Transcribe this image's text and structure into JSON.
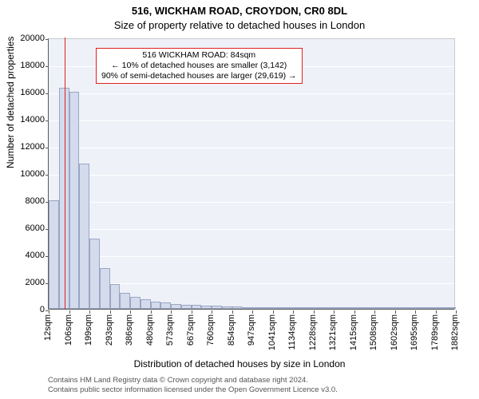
{
  "title_line1": "516, WICKHAM ROAD, CROYDON, CR0 8DL",
  "title_line2": "Size of property relative to detached houses in London",
  "ylabel": "Number of detached properties",
  "xlabel": "Distribution of detached houses by size in London",
  "footer_line1": "Contains HM Land Registry data © Crown copyright and database right 2024.",
  "footer_line2": "Contains public sector information licensed under the Open Government Licence v3.0.",
  "chart": {
    "type": "histogram",
    "background_color": "#eef1f8",
    "grid_color": "#ffffff",
    "axis_color": "#5a5a5a",
    "bar_fill": "#d3dbec",
    "bar_border": "#9aa6c4",
    "marker_color": "#e02020",
    "ylim": [
      0,
      20000
    ],
    "ytick_step": 2000,
    "ytick_labels": [
      "0",
      "2000",
      "4000",
      "6000",
      "8000",
      "10000",
      "12000",
      "14000",
      "16000",
      "18000",
      "20000"
    ],
    "x_bin_start": 12,
    "x_bin_width": 46.75,
    "x_bin_count": 40,
    "x_tick_every": 2,
    "x_tick_labels": [
      "12sqm",
      "106sqm",
      "199sqm",
      "293sqm",
      "386sqm",
      "480sqm",
      "573sqm",
      "667sqm",
      "760sqm",
      "854sqm",
      "947sqm",
      "1041sqm",
      "1134sqm",
      "1228sqm",
      "1321sqm",
      "1415sqm",
      "1508sqm",
      "1602sqm",
      "1695sqm",
      "1789sqm",
      "1882sqm"
    ],
    "values": [
      8000,
      16300,
      16000,
      10700,
      5200,
      3000,
      1800,
      1200,
      900,
      700,
      550,
      450,
      380,
      320,
      280,
      240,
      210,
      180,
      160,
      140,
      120,
      110,
      100,
      90,
      80,
      75,
      70,
      65,
      60,
      55,
      50,
      48,
      45,
      42,
      40,
      38,
      35,
      33,
      30,
      28
    ],
    "marker_x_value": 84,
    "title_fontsize": 13,
    "label_fontsize": 12,
    "tick_fontsize": 11
  },
  "callout": {
    "line1": "516 WICKHAM ROAD: 84sqm",
    "line2": "← 10% of detached houses are smaller (3,142)",
    "line3": "90% of semi-detached houses are larger (29,619) →",
    "border_color": "#e02020",
    "background_color": "#ffffff",
    "fontsize": 10.5
  }
}
